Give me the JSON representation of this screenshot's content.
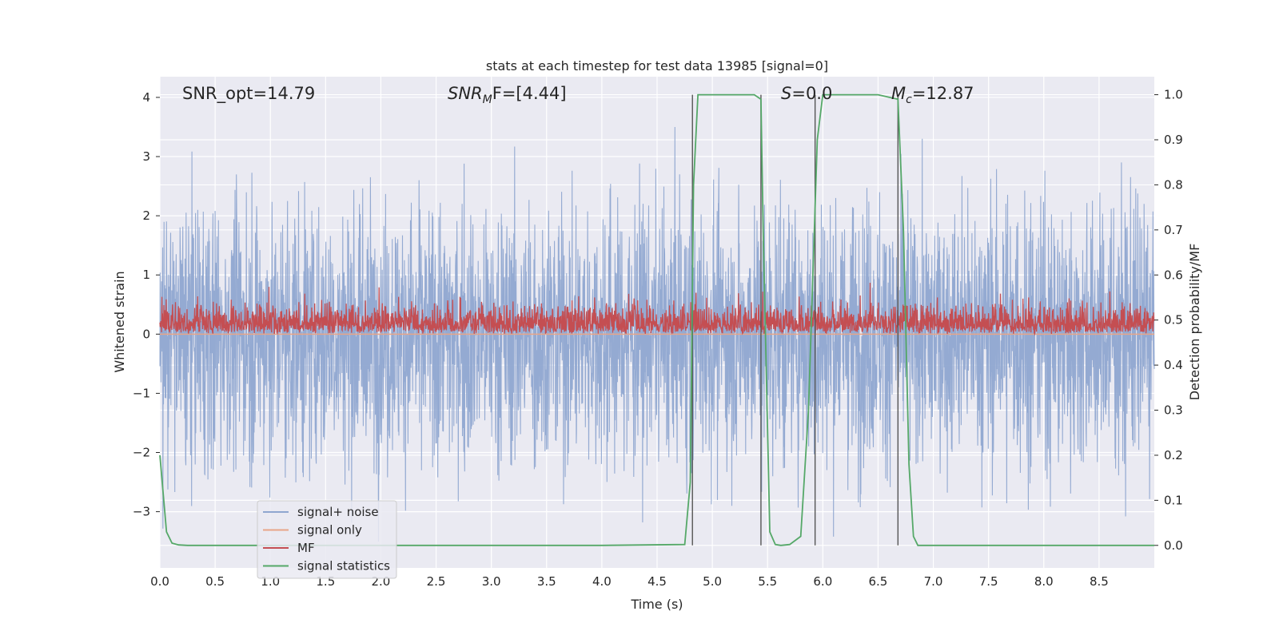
{
  "chart_data": {
    "type": "line",
    "title": "stats at each timestep for test data 13985 [signal=0]",
    "xlabel": "Time (s)",
    "ylabel": "Whitened strain",
    "ylabel_right": "Detection probability/MF",
    "xlim": [
      0.0,
      9.0
    ],
    "ylim": [
      -3.95,
      4.35
    ],
    "ylim_right": [
      -0.05,
      1.04
    ],
    "xticks": [
      "0.0",
      "0.5",
      "1.0",
      "1.5",
      "2.0",
      "2.5",
      "3.0",
      "3.5",
      "4.0",
      "4.5",
      "5.0",
      "5.5",
      "6.0",
      "6.5",
      "7.0",
      "7.5",
      "8.0",
      "8.5"
    ],
    "yticks": [
      "4",
      "3",
      "2",
      "1",
      "0",
      "−1",
      "−2",
      "−3"
    ],
    "yticks_right": [
      "1.0",
      "0.9",
      "0.8",
      "0.7",
      "0.6",
      "0.5",
      "0.4",
      "0.3",
      "0.2",
      "0.1",
      "0.0"
    ],
    "grid": true,
    "annotations": {
      "snr_opt": "SNR_opt=14.79",
      "snr_mf_name": "SNR",
      "snr_mf_sub": "M",
      "snr_mf_rest": "F=[4.44]",
      "s_name": "S",
      "s_rest": "=0.0",
      "mc_name": "M",
      "mc_sub": "c",
      "mc_rest": "=12.87"
    },
    "vlines": [
      4.82,
      5.44,
      5.93,
      6.68
    ],
    "series": [
      {
        "name": "signal+ noise",
        "color": "#8fa6d0",
        "description": "whitened noise, approx amplitude ±3.5"
      },
      {
        "name": "signal only",
        "color": "#e8a588",
        "values_constant": 0.0
      },
      {
        "name": "MF",
        "color": "#c44e52",
        "description": "matched-filter output, range 0 to 1.0"
      },
      {
        "name": "signal statistics",
        "color": "#55a868",
        "axis": "right",
        "x": [
          0.0,
          0.06,
          0.11,
          0.17,
          0.25,
          0.4,
          1.0,
          2.0,
          3.0,
          4.0,
          4.75,
          4.8,
          4.83,
          4.87,
          4.9,
          5.0,
          5.2,
          5.38,
          5.44,
          5.46,
          5.52,
          5.57,
          5.62,
          5.7,
          5.8,
          5.87,
          5.95,
          6.0,
          6.2,
          6.5,
          6.68,
          6.73,
          6.78,
          6.82,
          6.86,
          6.9,
          7.5,
          8.0,
          9.0
        ],
        "values": [
          0.2,
          0.03,
          0.005,
          0.001,
          0.0,
          0.0,
          0.0,
          0.0,
          0.0,
          0.0,
          0.002,
          0.14,
          0.8,
          1.0,
          1.0,
          1.0,
          1.0,
          1.0,
          0.99,
          0.7,
          0.03,
          0.002,
          0.0,
          0.002,
          0.02,
          0.3,
          0.9,
          1.0,
          1.0,
          1.0,
          0.99,
          0.7,
          0.18,
          0.02,
          0.0,
          0.0,
          0.0,
          0.0,
          0.0
        ]
      }
    ],
    "legend": {
      "position": "lower-left",
      "entries": [
        "signal+ noise",
        "signal only",
        "MF",
        "signal statistics"
      ]
    }
  }
}
